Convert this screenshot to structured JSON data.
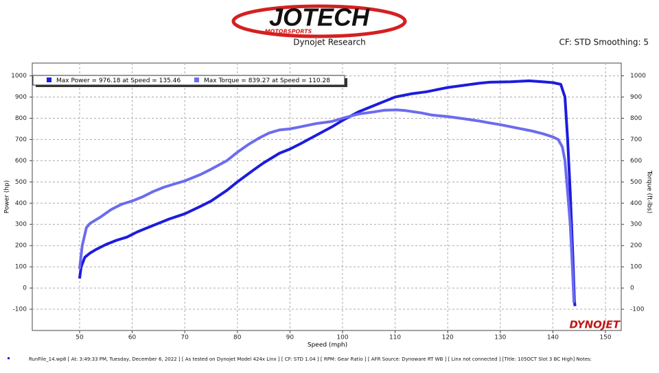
{
  "header": {
    "logo": "JOTECH",
    "logo_sub": "MOTORSPORTS",
    "subtitle": "Dynojet Research",
    "settings": "CF: STD Smoothing: 5"
  },
  "chart_data": {
    "type": "line",
    "xlabel": "Speed (mph)",
    "ylabel": "Power (hp)",
    "y2label": "Torque (ft-lbs)",
    "xlim": [
      41,
      153
    ],
    "ylim": [
      -200,
      1060
    ],
    "y2lim": [
      -200,
      1060
    ],
    "xticks": [
      50,
      60,
      70,
      80,
      90,
      100,
      110,
      120,
      130,
      140,
      150
    ],
    "yticks": [
      -100,
      0,
      100,
      200,
      300,
      400,
      500,
      600,
      700,
      800,
      900,
      1000
    ],
    "y2ticks": [
      -100,
      0,
      100,
      200,
      300,
      400,
      500,
      600,
      700,
      800,
      900,
      1000
    ],
    "grid": true,
    "legend": "top-left",
    "watermark": "DYNOJET",
    "series": [
      {
        "name": "Max Power = 976.18 at Speed = 135.46",
        "color": "#1c1cdc",
        "axis": "y",
        "x": [
          50,
          50.3,
          51,
          52,
          53,
          55,
          57,
          59,
          61,
          63,
          65,
          67,
          70,
          73,
          75,
          78,
          80,
          83,
          85,
          88,
          90,
          92,
          95,
          98,
          100,
          103,
          105,
          108,
          110,
          113,
          116,
          120,
          123,
          126,
          128,
          132,
          135.46,
          138,
          140,
          141.5,
          142.3,
          142.8,
          143.3,
          143.8,
          144.1,
          144.2
        ],
        "values": [
          45,
          100,
          145,
          165,
          180,
          205,
          225,
          240,
          265,
          285,
          305,
          325,
          350,
          385,
          410,
          460,
          500,
          555,
          590,
          635,
          655,
          680,
          720,
          760,
          790,
          830,
          850,
          880,
          900,
          915,
          925,
          945,
          955,
          965,
          970,
          972,
          976.18,
          972,
          968,
          960,
          900,
          700,
          450,
          150,
          -60,
          -85
        ]
      },
      {
        "name": "Max Torque = 839.27 at Speed = 110.28",
        "color": "#6b6bef",
        "axis": "y2",
        "x": [
          50,
          50.5,
          51.3,
          52,
          54,
          56,
          58,
          60,
          62,
          64,
          66,
          68,
          70,
          73,
          75,
          78,
          80,
          82,
          84,
          86,
          88,
          90,
          92,
          95,
          98,
          100,
          103,
          106,
          108,
          110.28,
          112,
          115,
          117,
          120,
          123,
          126,
          128,
          130,
          133,
          136,
          138,
          140,
          141,
          141.8,
          142.3,
          142.8,
          143.3,
          143.8,
          144
        ],
        "values": [
          90,
          200,
          285,
          305,
          335,
          370,
          395,
          410,
          430,
          455,
          475,
          490,
          505,
          535,
          560,
          600,
          640,
          675,
          705,
          730,
          745,
          750,
          760,
          775,
          785,
          800,
          820,
          830,
          838,
          839.27,
          836,
          825,
          815,
          808,
          798,
          787,
          778,
          770,
          755,
          740,
          728,
          712,
          700,
          665,
          600,
          450,
          300,
          50,
          -70
        ]
      }
    ]
  },
  "footer": "RunFile_14.wp8 [ At: 3:49:33 PM, Tuesday, December 6, 2022 ] [ As tested on Dynojet Model 424x Linx ] [ CF: STD 1.04 ] [ RPM: Gear Ratio ] [ AFR Source: Dynoware RT WB ] [ Linx not connected ] [Title: 105OCT Slot 3 BC High]  Notes:"
}
